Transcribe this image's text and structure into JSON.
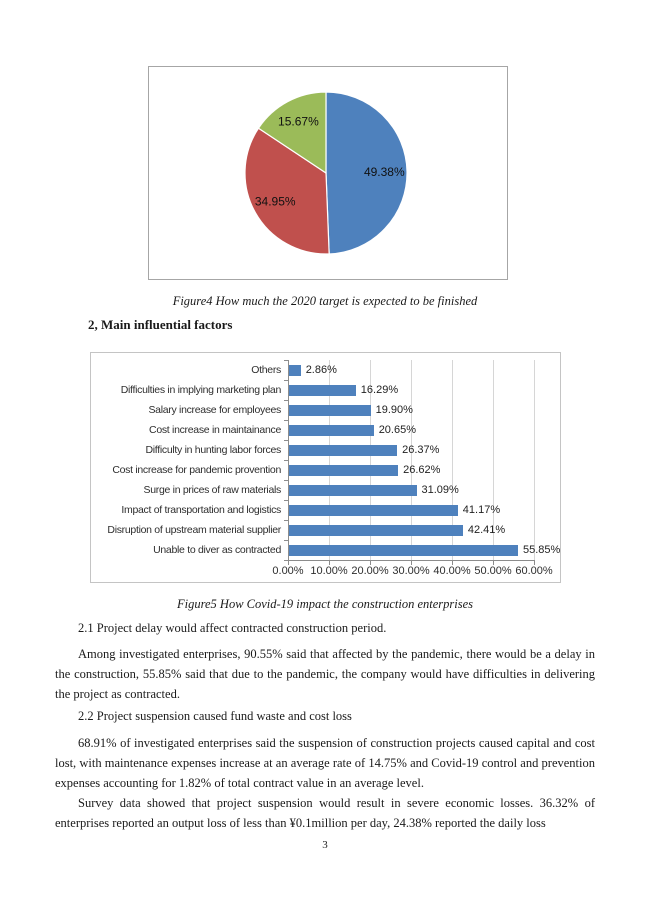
{
  "page": {
    "number": "3"
  },
  "section": {
    "heading": "2, Main influential factors"
  },
  "figures": {
    "figure4_caption": "Figure4 How much the 2020 target is expected to be finished",
    "figure5_caption": "Figure5 How Covid-19 impact the construction enterprises"
  },
  "paragraphs": {
    "p21": "2.1 Project delay would affect contracted construction period.",
    "p_delay": "Among investigated enterprises, 90.55% said that affected by the pandemic, there would be a delay in the construction, 55.85% said that due to the pandemic, the company would have difficulties in delivering the project as contracted.",
    "p22": "2.2 Project suspension caused fund waste and cost loss",
    "p_suspension": "68.91% of investigated enterprises said the suspension of construction projects caused capital and cost lost, with maintenance expenses increase at an average rate of 14.75% and Covid-19 control and prevention expenses accounting for 1.82% of total contract value in an average level.",
    "p_survey": "Survey data showed that project suspension would result in severe economic losses. 36.32% of enterprises reported an output loss of less than ¥0.1million per day, 24.38% reported the daily loss"
  },
  "chart_data": [
    {
      "type": "pie",
      "title": "Figure4 How much the 2020 target is expected to be finished",
      "direction": "clockwise",
      "start_angle_deg": 0,
      "legend": "none",
      "slices": [
        {
          "label": "49.38%",
          "value": 49.38,
          "color": "#4E81BD"
        },
        {
          "label": "34.95%",
          "value": 34.95,
          "color": "#C0504D"
        },
        {
          "label": "15.67%",
          "value": 15.67,
          "color": "#9BBB59"
        }
      ]
    },
    {
      "type": "bar",
      "orientation": "horizontal",
      "title": "Figure5 How Covid-19 impact the construction enterprises",
      "categories": [
        "Others",
        "Difficulties in implying marketing plan",
        "Salary increase for employees",
        "Cost increase in maintainance",
        "Difficulty in hunting labor forces",
        "Cost increase for pandemic provention",
        "Surge in prices of raw materials",
        "Impact of transportation and logistics",
        "Disruption of upstream material supplier",
        "Unable to diver as contracted"
      ],
      "values": [
        2.86,
        16.29,
        19.9,
        20.65,
        26.37,
        26.62,
        31.09,
        41.17,
        42.41,
        55.85
      ],
      "value_labels": [
        "2.86%",
        "16.29%",
        "19.90%",
        "20.65%",
        "26.37%",
        "26.62%",
        "31.09%",
        "41.17%",
        "42.41%",
        "55.85%"
      ],
      "xlim": [
        0,
        60
      ],
      "xtick_labels": [
        "0.00%",
        "10.00%",
        "20.00%",
        "30.00%",
        "40.00%",
        "50.00%",
        "60.00%"
      ],
      "bar_color": "#4E81BD",
      "grid": "vertical"
    }
  ]
}
